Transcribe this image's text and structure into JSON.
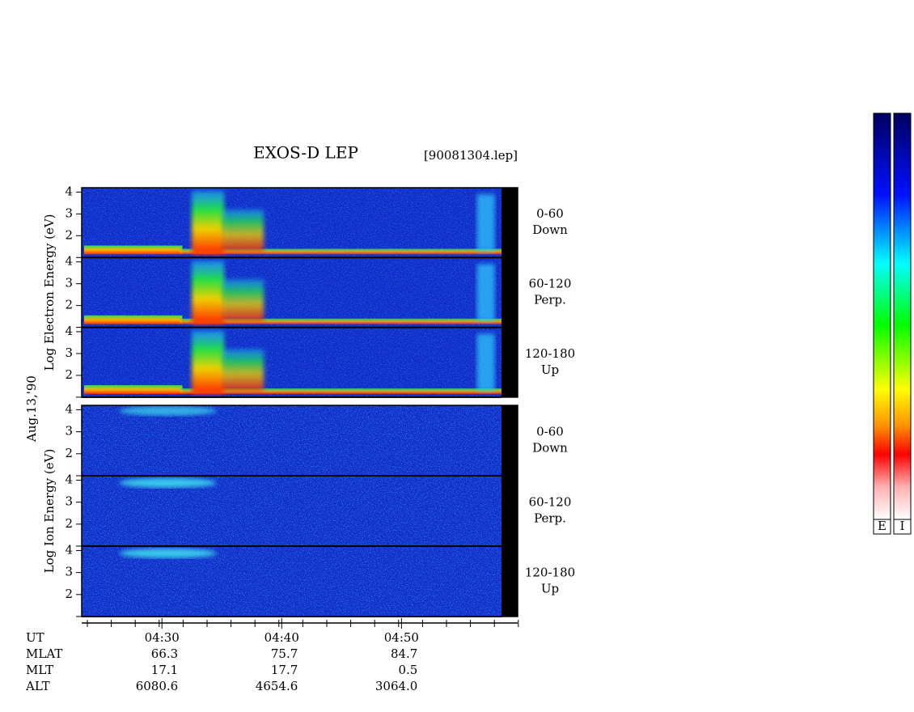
{
  "chart_data": {
    "type": "spectrogram",
    "title": "EXOS-D LEP",
    "file": "[90081304.lep]",
    "date": "Aug.13,'90",
    "groups": [
      {
        "label": "Log Electron Energy (eV)",
        "panels": [
          {
            "range": "0-60",
            "direction": "Down"
          },
          {
            "range": "60-120",
            "direction": "Perp."
          },
          {
            "range": "120-180",
            "direction": "Up"
          }
        ]
      },
      {
        "label": "Log Ion Energy (eV)",
        "panels": [
          {
            "range": "0-60",
            "direction": "Down"
          },
          {
            "range": "60-120",
            "direction": "Perp."
          },
          {
            "range": "120-180",
            "direction": "Up"
          }
        ]
      }
    ],
    "ylim": [
      1,
      4.2
    ],
    "yticks": [
      2,
      3,
      4
    ],
    "xlim": [
      263.3,
      299.7
    ],
    "xticks": [
      {
        "value": 270,
        "label": "04:30"
      },
      {
        "value": 280,
        "label": "04:40"
      },
      {
        "value": 290,
        "label": "04:50"
      }
    ],
    "ephemeris": [
      {
        "name": "UT"
      },
      {
        "name": "MLAT",
        "values": [
          "66.3",
          "75.7",
          "84.7"
        ]
      },
      {
        "name": "MLT",
        "values": [
          "17.1",
          "17.7",
          "0.5"
        ]
      },
      {
        "name": "ALT",
        "values": [
          "6080.6",
          "4654.6",
          "3064.0"
        ]
      }
    ],
    "colorbars": [
      "E",
      "I"
    ]
  }
}
